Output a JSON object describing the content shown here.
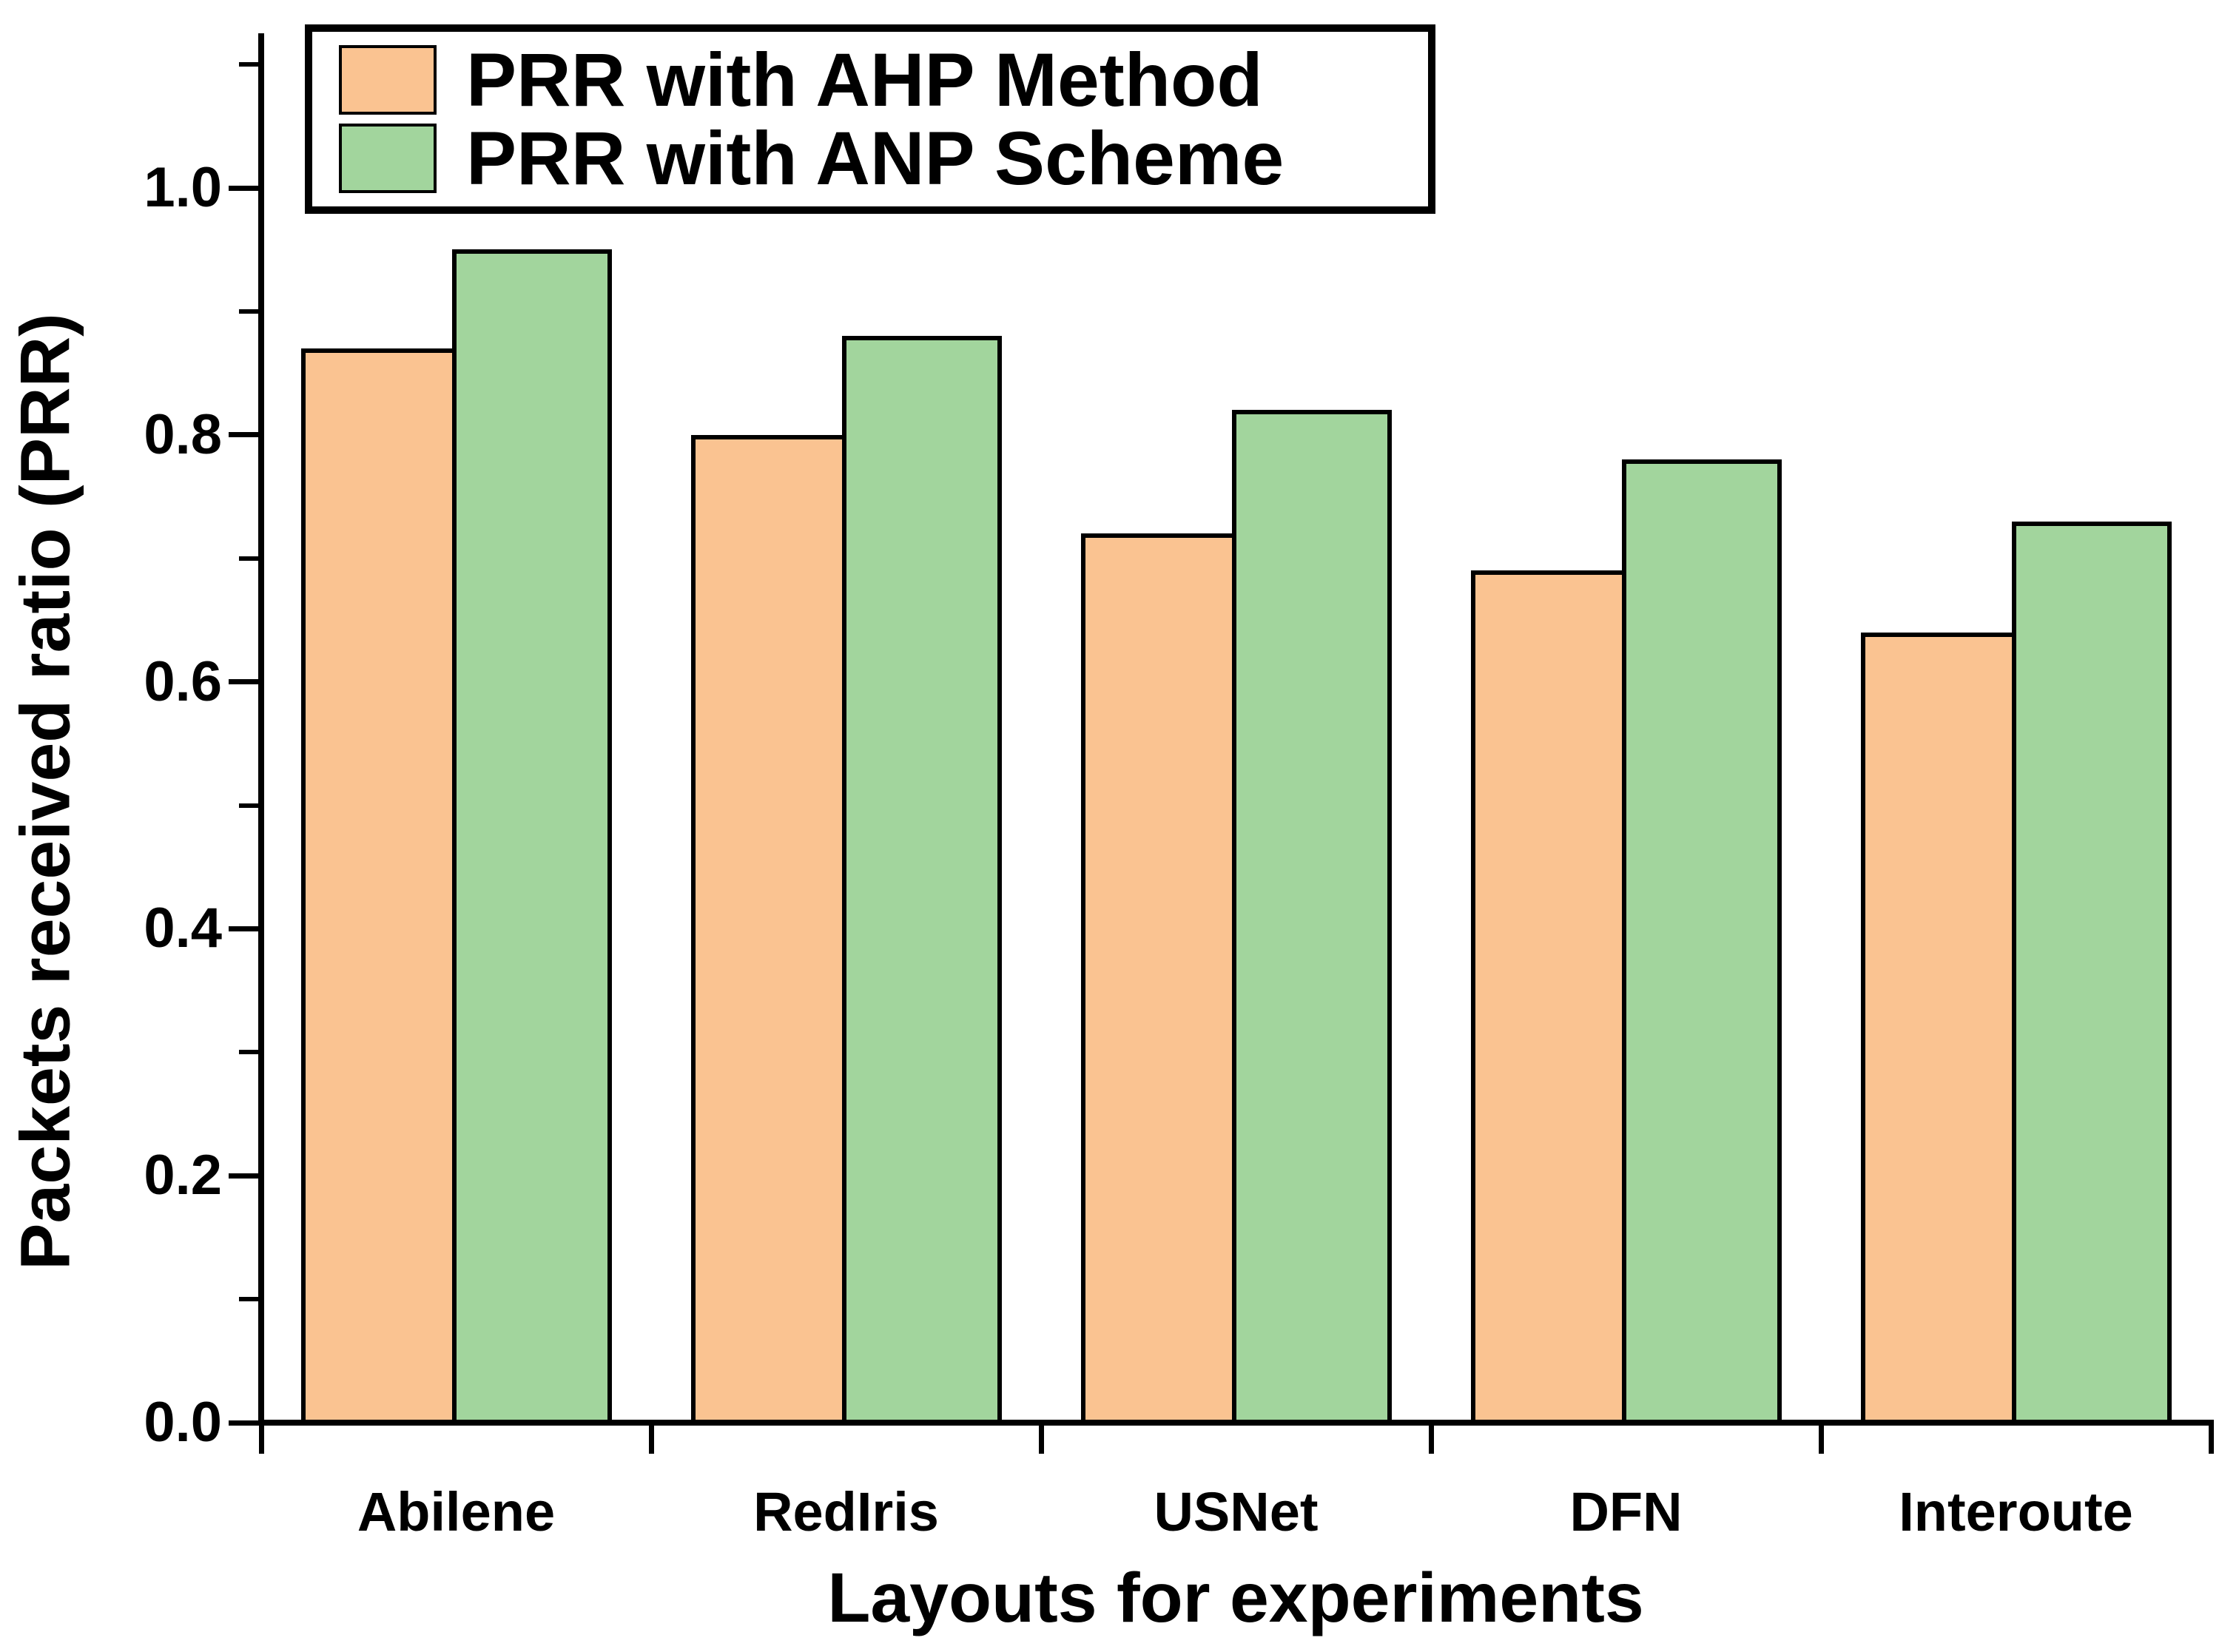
{
  "chart_data": {
    "type": "bar",
    "title": "",
    "xlabel": "Layouts for experiments",
    "ylabel": "Packets received ratio (PRR)",
    "categories": [
      "Abilene",
      "RedIris",
      "USNet",
      "DFN",
      "Interoute"
    ],
    "series": [
      {
        "name": "PRR with AHP Method",
        "color": "#FAC391",
        "values": [
          0.87,
          0.8,
          0.72,
          0.69,
          0.64
        ]
      },
      {
        "name": "PRR with ANP Scheme",
        "color": "#A2D59D",
        "values": [
          0.95,
          0.88,
          0.82,
          0.78,
          0.73
        ]
      }
    ],
    "ylim": [
      0.0,
      1.125
    ],
    "yticks_major": [
      0.0,
      0.2,
      0.4,
      0.6,
      0.8,
      1.0
    ],
    "ytick_labels": [
      "0.0",
      "0.2",
      "0.4",
      "0.6",
      "0.8",
      "1.0"
    ],
    "yticks_minor": [
      0.1,
      0.3,
      0.5,
      0.7,
      0.9,
      1.1
    ],
    "grid": false,
    "legend_position": "top-left-inside",
    "bar_outline_color": "#000000",
    "axis_color": "#000000",
    "background_color": "#ffffff"
  }
}
